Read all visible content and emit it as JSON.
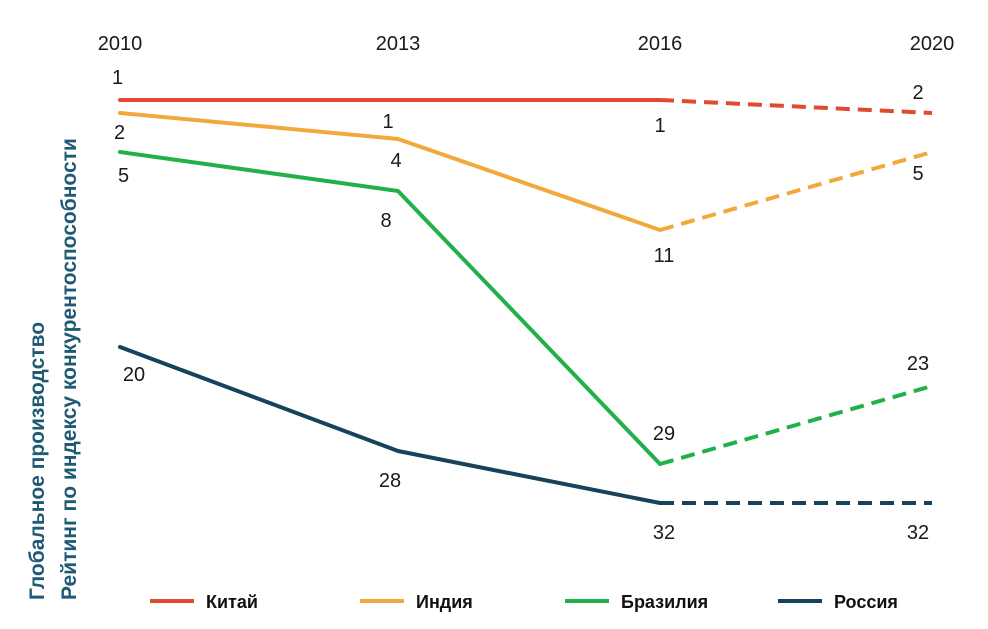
{
  "chart_data": {
    "type": "line",
    "title": "",
    "ylabel_line1": "Глобальное производство",
    "ylabel_line2": "Рейтинг по индексу конкурентоспособности",
    "x": [
      "2010",
      "2013",
      "2016",
      "2020"
    ],
    "projection_start_index": 2,
    "y_reversed": true,
    "series": [
      {
        "name": "Китай",
        "color": "#e04a2f",
        "values": [
          1,
          1,
          1,
          2
        ]
      },
      {
        "name": "Индия",
        "color": "#f2a83b",
        "values": [
          2,
          4,
          11,
          5
        ]
      },
      {
        "name": "Бразилия",
        "color": "#22b04b",
        "values": [
          5,
          8,
          29,
          23
        ]
      },
      {
        "name": "Россия",
        "color": "#16425b",
        "values": [
          20,
          28,
          32,
          32
        ]
      }
    ],
    "legend_position": "bottom"
  }
}
